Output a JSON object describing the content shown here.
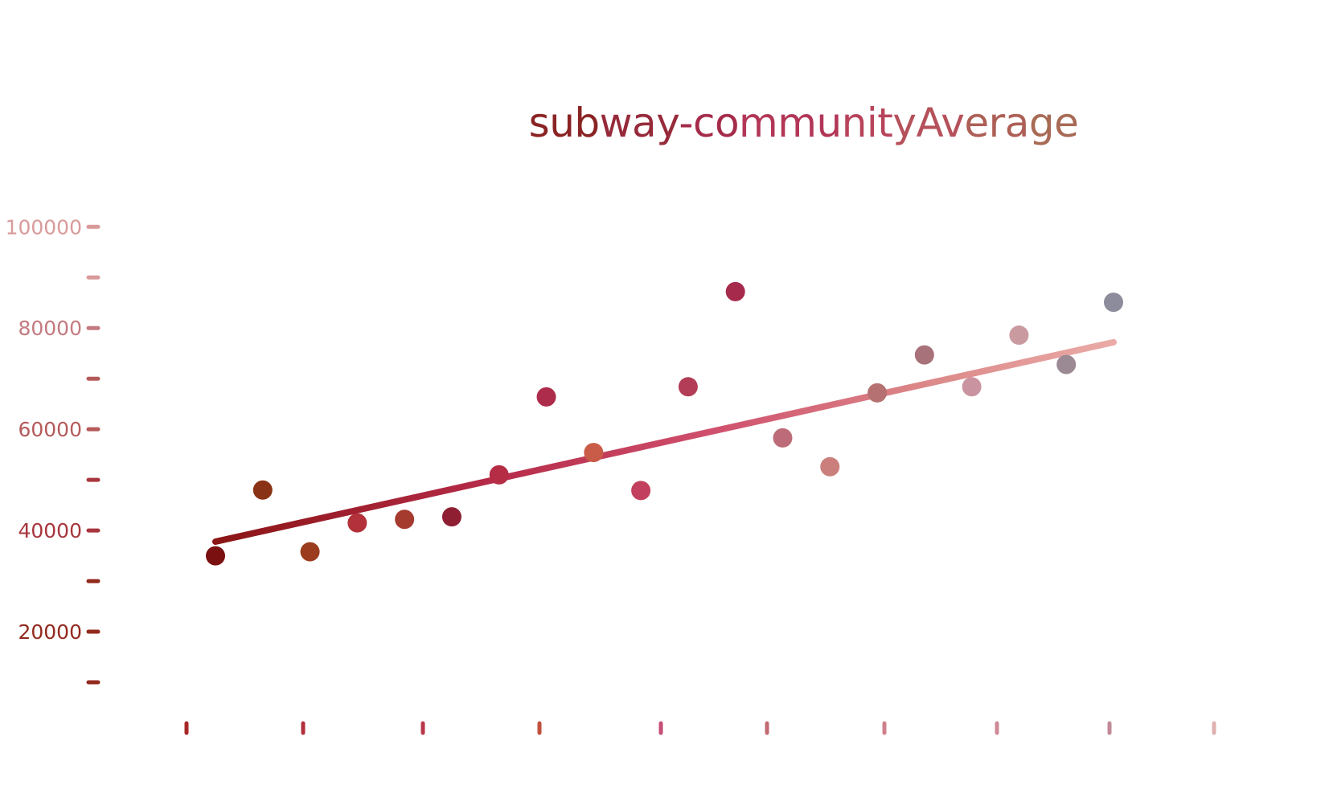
{
  "chart_data": {
    "type": "scatter",
    "title": "subway-communityAverage",
    "xlabel": "",
    "ylabel": "",
    "yticks": [
      20000,
      40000,
      60000,
      80000,
      100000
    ],
    "ytick_labels": [
      "20000",
      "40000",
      "60000",
      "80000",
      "100000"
    ],
    "ylim": [
      0,
      101000
    ],
    "xlim": [
      -1,
      21
    ],
    "x": [
      1,
      2,
      3,
      4,
      5,
      6,
      7,
      8,
      9,
      10,
      11,
      12,
      13,
      14,
      15,
      16,
      17,
      18,
      19,
      20
    ],
    "values": [
      35000,
      48000,
      35800,
      41500,
      42200,
      42700,
      51000,
      66400,
      55400,
      47900,
      68400,
      87200,
      58300,
      52600,
      67200,
      74700,
      68400,
      78600,
      72800,
      85100
    ],
    "trendline": {
      "x": [
        1,
        20
      ],
      "y": [
        37800,
        77200
      ]
    },
    "grid": false,
    "legend": "none",
    "colors": {
      "points": [
        "#7a1010",
        "#8a3215",
        "#9a3c1d",
        "#b3313a",
        "#a53a2e",
        "#8e1f33",
        "#b52d45",
        "#ad2b4b",
        "#c95c48",
        "#c2405d",
        "#b33c56",
        "#a52a4c",
        "#bd6b78",
        "#cb7f7c",
        "#b57171",
        "#a8727a",
        "#c9949f",
        "#c99aa0",
        "#9b8a94",
        "#8c8c9c"
      ],
      "trend_start": "#8a1515",
      "trend_end": "#e8a8a5",
      "axis_start": "#8a1e1e",
      "axis_end": "#e0a8a8",
      "title_start": "#8a2323",
      "title_end": "#a86a55"
    }
  }
}
